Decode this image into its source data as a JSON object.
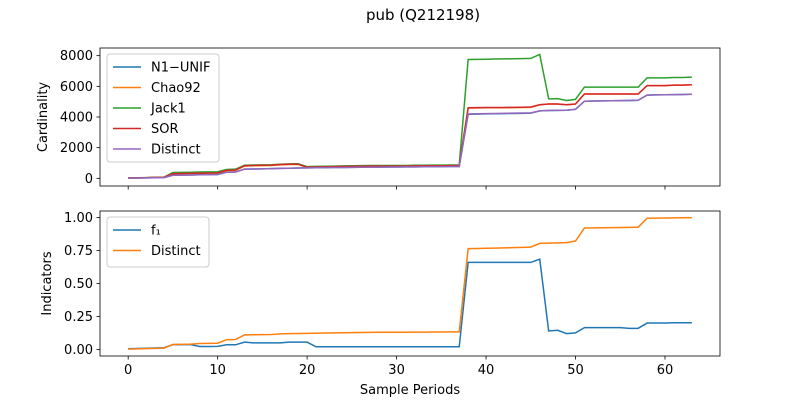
{
  "figure": {
    "title": "pub (Q212198)"
  },
  "x": [
    0,
    1,
    2,
    3,
    4,
    5,
    6,
    7,
    8,
    9,
    10,
    11,
    12,
    13,
    14,
    15,
    16,
    17,
    18,
    19,
    20,
    21,
    22,
    23,
    24,
    25,
    26,
    27,
    28,
    29,
    30,
    31,
    32,
    33,
    34,
    35,
    36,
    37,
    38,
    39,
    40,
    41,
    42,
    43,
    44,
    45,
    46,
    47,
    48,
    49,
    50,
    51,
    52,
    53,
    54,
    55,
    56,
    57,
    58,
    59,
    60,
    61,
    62,
    63
  ],
  "chart_data": [
    {
      "type": "line",
      "xlabel": "",
      "ylabel": "Cardinality",
      "xlim": [
        -3.15,
        66.15
      ],
      "ylim": [
        -500,
        8500
      ],
      "yticks": [
        0,
        2000,
        4000,
        6000,
        8000
      ],
      "xticks": [
        0,
        10,
        20,
        30,
        40,
        50,
        60
      ],
      "legend_position": "upper left",
      "series": [
        {
          "name": "N1−UNIF",
          "color": "#1f77b4",
          "values": [
            10,
            20,
            30,
            40,
            50,
            200,
            210,
            220,
            230,
            240,
            250,
            400,
            410,
            600,
            610,
            620,
            630,
            650,
            660,
            670,
            680,
            690,
            700,
            705,
            710,
            715,
            720,
            725,
            730,
            735,
            740,
            745,
            750,
            755,
            760,
            765,
            770,
            775,
            4180,
            4190,
            4200,
            4210,
            4220,
            4230,
            4240,
            4250,
            4400,
            4420,
            4430,
            4440,
            4500,
            5030,
            5040,
            5050,
            5060,
            5070,
            5080,
            5090,
            5430,
            5440,
            5450,
            5460,
            5470,
            5480
          ]
        },
        {
          "name": "Chao92",
          "color": "#ff7f0e",
          "values": [
            20,
            30,
            40,
            60,
            70,
            300,
            310,
            320,
            330,
            340,
            350,
            500,
            520,
            800,
            820,
            830,
            840,
            880,
            900,
            910,
            700,
            720,
            730,
            740,
            750,
            760,
            770,
            780,
            780,
            780,
            780,
            780,
            790,
            790,
            800,
            800,
            810,
            810,
            4580,
            4590,
            4600,
            4600,
            4600,
            4610,
            4620,
            4630,
            4800,
            4850,
            4850,
            4800,
            4850,
            5500,
            5500,
            5500,
            5500,
            5500,
            5500,
            5500,
            6050,
            6050,
            6050,
            6080,
            6080,
            6100
          ]
        },
        {
          "name": "Jack1",
          "color": "#2ca02c",
          "values": [
            30,
            40,
            50,
            70,
            80,
            380,
            390,
            400,
            410,
            420,
            430,
            580,
            600,
            850,
            870,
            880,
            890,
            920,
            940,
            950,
            760,
            780,
            790,
            800,
            810,
            820,
            830,
            840,
            840,
            840,
            840,
            840,
            850,
            850,
            860,
            860,
            870,
            870,
            7750,
            7760,
            7770,
            7780,
            7790,
            7800,
            7810,
            7820,
            8080,
            5180,
            5200,
            5080,
            5150,
            5950,
            5950,
            5950,
            5950,
            5950,
            5950,
            5950,
            6550,
            6550,
            6550,
            6580,
            6580,
            6600
          ]
        },
        {
          "name": "SOR",
          "color": "#d62728",
          "values": [
            20,
            30,
            40,
            60,
            70,
            300,
            310,
            320,
            330,
            340,
            350,
            520,
            540,
            820,
            840,
            850,
            860,
            900,
            920,
            930,
            720,
            740,
            750,
            760,
            770,
            780,
            790,
            800,
            800,
            800,
            800,
            800,
            810,
            810,
            820,
            820,
            830,
            830,
            4600,
            4610,
            4620,
            4620,
            4620,
            4630,
            4640,
            4650,
            4800,
            4850,
            4850,
            4800,
            4850,
            5500,
            5500,
            5500,
            5500,
            5500,
            5500,
            5500,
            6050,
            6050,
            6050,
            6080,
            6080,
            6100
          ]
        },
        {
          "name": "Distinct",
          "color": "#9467bd",
          "values": [
            10,
            20,
            30,
            40,
            50,
            200,
            210,
            220,
            230,
            240,
            250,
            400,
            410,
            600,
            610,
            620,
            630,
            650,
            660,
            670,
            680,
            690,
            700,
            705,
            710,
            715,
            720,
            725,
            730,
            735,
            740,
            745,
            750,
            755,
            760,
            765,
            770,
            775,
            4200,
            4210,
            4220,
            4230,
            4240,
            4250,
            4260,
            4270,
            4400,
            4420,
            4430,
            4440,
            4500,
            5030,
            5040,
            5050,
            5060,
            5070,
            5080,
            5090,
            5430,
            5440,
            5450,
            5460,
            5470,
            5480
          ]
        }
      ]
    },
    {
      "type": "line",
      "xlabel": "Sample Periods",
      "ylabel": "Indicators",
      "xlim": [
        -3.15,
        66.15
      ],
      "ylim": [
        -0.05,
        1.05
      ],
      "yticks": [
        0.0,
        0.25,
        0.5,
        0.75,
        1.0
      ],
      "ytick_labels": [
        "0.00",
        "0.25",
        "0.50",
        "0.75",
        "1.00"
      ],
      "xticks": [
        0,
        10,
        20,
        30,
        40,
        50,
        60
      ],
      "legend_position": "upper left",
      "series": [
        {
          "name": "f₁",
          "color": "#1f77b4",
          "values": [
            0.005,
            0.007,
            0.009,
            0.011,
            0.013,
            0.036,
            0.037,
            0.036,
            0.022,
            0.022,
            0.023,
            0.035,
            0.035,
            0.055,
            0.05,
            0.05,
            0.05,
            0.05,
            0.055,
            0.055,
            0.055,
            0.02,
            0.02,
            0.02,
            0.02,
            0.02,
            0.02,
            0.02,
            0.02,
            0.02,
            0.02,
            0.02,
            0.02,
            0.02,
            0.02,
            0.02,
            0.02,
            0.02,
            0.66,
            0.66,
            0.66,
            0.66,
            0.66,
            0.66,
            0.66,
            0.66,
            0.685,
            0.14,
            0.145,
            0.12,
            0.125,
            0.165,
            0.165,
            0.165,
            0.165,
            0.165,
            0.16,
            0.16,
            0.2,
            0.2,
            0.2,
            0.202,
            0.202,
            0.202
          ]
        },
        {
          "name": "Distinct",
          "color": "#ff7f0e",
          "values": [
            0.002,
            0.004,
            0.006,
            0.008,
            0.01,
            0.037,
            0.038,
            0.04,
            0.045,
            0.046,
            0.047,
            0.073,
            0.075,
            0.11,
            0.111,
            0.112,
            0.113,
            0.118,
            0.12,
            0.121,
            0.122,
            0.123,
            0.124,
            0.125,
            0.126,
            0.127,
            0.128,
            0.129,
            0.13,
            0.13,
            0.13,
            0.13,
            0.131,
            0.131,
            0.132,
            0.132,
            0.133,
            0.133,
            0.765,
            0.766,
            0.767,
            0.768,
            0.77,
            0.772,
            0.774,
            0.776,
            0.804,
            0.806,
            0.808,
            0.81,
            0.822,
            0.921,
            0.922,
            0.923,
            0.924,
            0.925,
            0.926,
            0.927,
            0.995,
            0.996,
            0.997,
            0.998,
            0.999,
            1.0
          ]
        }
      ]
    }
  ]
}
